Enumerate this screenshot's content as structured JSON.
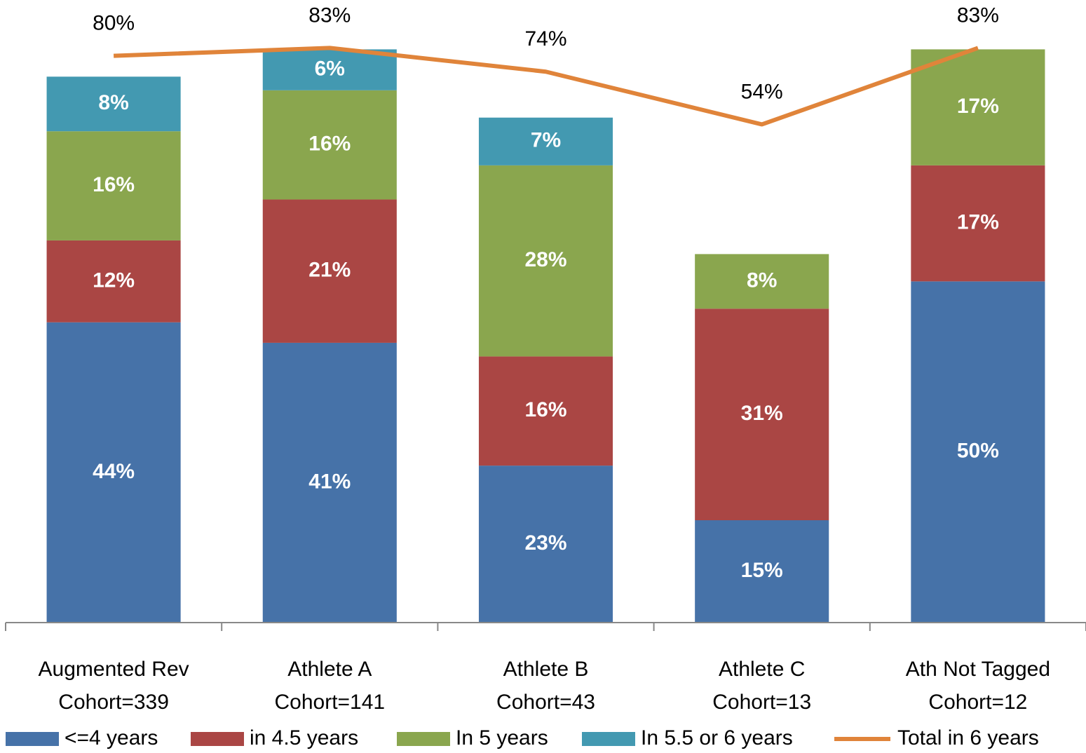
{
  "chart_data": {
    "type": "bar",
    "stacked": true,
    "categories": [
      [
        "Augmented Rev",
        "Cohort=339"
      ],
      [
        "Athlete A",
        "Cohort=141"
      ],
      [
        "Athlete B",
        "Cohort=43"
      ],
      [
        "Athlete C",
        "Cohort=13"
      ],
      [
        "Ath Not Tagged",
        "Cohort=12"
      ]
    ],
    "ylim": [
      0,
      90
    ],
    "y2lim": [
      -135,
      98
    ],
    "legend": "bottom",
    "series": [
      {
        "name": "<=4 years",
        "color": "#4672a8",
        "values": [
          44,
          41,
          23,
          15,
          50
        ],
        "value_labels": [
          "44%",
          "41%",
          "23%",
          "15%",
          "50%"
        ]
      },
      {
        "name": "in 4.5 years",
        "color": "#aa4644",
        "values": [
          12,
          21,
          16,
          31,
          17
        ],
        "value_labels": [
          "12%",
          "21%",
          "16%",
          "31%",
          "17%"
        ]
      },
      {
        "name": "In 5 years",
        "color": "#8aa64e",
        "values": [
          16,
          16,
          28,
          8,
          17
        ],
        "value_labels": [
          "16%",
          "16%",
          "28%",
          "8%",
          "17%"
        ]
      },
      {
        "name": "In 5.5 or 6 years",
        "color": "#4399b1",
        "values": [
          8,
          6,
          7,
          null,
          null
        ],
        "value_labels": [
          "8%",
          "6%",
          "7%",
          null,
          null
        ]
      },
      {
        "name": "Total in 6 years",
        "type": "line",
        "axis": "y2",
        "color": "#e0843a",
        "values": [
          80,
          83,
          74,
          54,
          83
        ],
        "value_labels": [
          "80%",
          "83%",
          "74%",
          "54%",
          "83%"
        ]
      }
    ]
  }
}
